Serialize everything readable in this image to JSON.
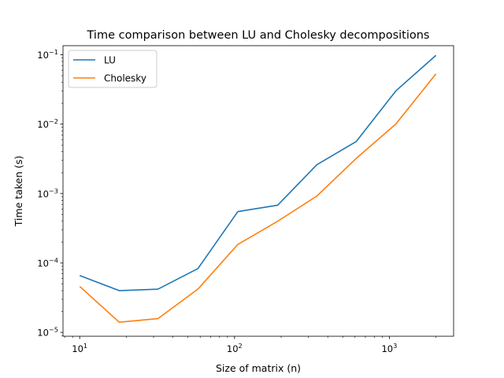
{
  "chart_data": {
    "type": "line",
    "title": "Time comparison between LU and Cholesky decompositions",
    "xlabel": "Size of matrix (n)",
    "ylabel": "Time taken (s)",
    "xscale": "log",
    "yscale": "log",
    "xlim": [
      7.8,
      2600
    ],
    "ylim": [
      8.8e-06,
      0.135
    ],
    "grid": false,
    "legend_position": "top-left",
    "x_ticks": [
      {
        "value": 10,
        "base": "10",
        "exp": "1"
      },
      {
        "value": 100,
        "base": "10",
        "exp": "2"
      },
      {
        "value": 1000,
        "base": "10",
        "exp": "3"
      }
    ],
    "y_ticks": [
      {
        "value": 1e-05,
        "base": "10",
        "exp": "−5"
      },
      {
        "value": 0.0001,
        "base": "10",
        "exp": "−4"
      },
      {
        "value": 0.001,
        "base": "10",
        "exp": "−3"
      },
      {
        "value": 0.01,
        "base": "10",
        "exp": "−2"
      },
      {
        "value": 0.1,
        "base": "10",
        "exp": "−1"
      }
    ],
    "x": [
      10,
      18,
      32,
      58,
      105,
      190,
      340,
      610,
      1100,
      2000
    ],
    "series": [
      {
        "name": "LU",
        "color": "#1f77b4",
        "values": [
          6.6e-05,
          4e-05,
          4.2e-05,
          8.3e-05,
          0.00055,
          0.00068,
          0.0026,
          0.0056,
          0.03,
          0.098
        ]
      },
      {
        "name": "Cholesky",
        "color": "#ff7f0e",
        "values": [
          4.6e-05,
          1.4e-05,
          1.58e-05,
          4.2e-05,
          0.000185,
          0.0004,
          0.00092,
          0.0032,
          0.01,
          0.053
        ]
      }
    ]
  }
}
